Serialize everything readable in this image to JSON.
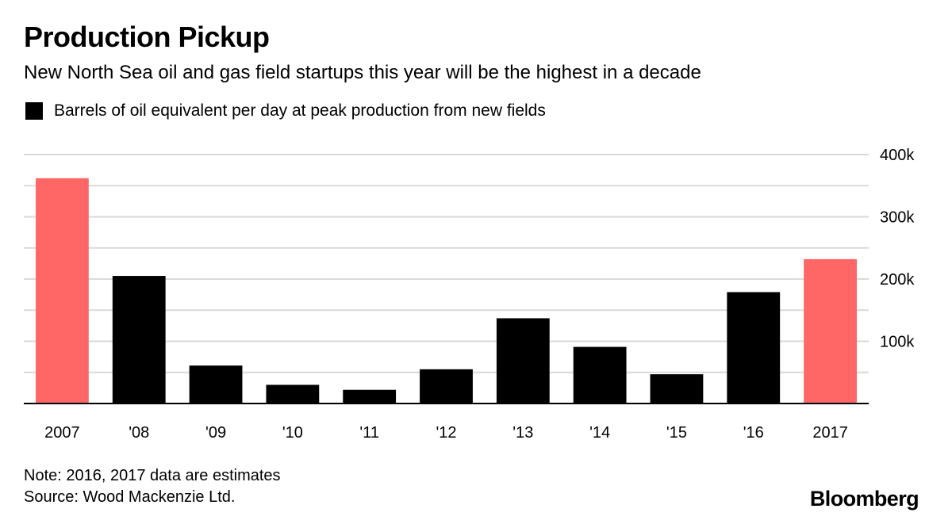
{
  "header": {
    "title": "Production Pickup",
    "subtitle": "New North Sea oil and gas field startups this year will be the highest in a decade"
  },
  "legend": {
    "label": "Barrels of oil equivalent per day at peak production from new fields",
    "color": "#000000"
  },
  "colors": {
    "estimate": "#ff6666",
    "actual": "#000000",
    "grid": "#d9d9d9",
    "axis": "#000000"
  },
  "chart_data": {
    "type": "bar",
    "categories": [
      "2007",
      "'08",
      "'09",
      "'10",
      "'11",
      "'12",
      "'13",
      "'14",
      "'15",
      "'16",
      "2017"
    ],
    "values": [
      362000,
      205000,
      61000,
      30000,
      22000,
      55000,
      137000,
      91000,
      47000,
      179000,
      232000
    ],
    "highlighted": [
      "2007",
      "2017"
    ],
    "ylim": [
      0,
      400000
    ],
    "yticks": [
      100000,
      200000,
      300000,
      400000
    ],
    "ytick_labels": [
      "100k",
      "200k",
      "300k",
      "400k"
    ],
    "grid_step": 50000,
    "grid": true,
    "y_axis_side": "right",
    "legend_position": "top-left"
  },
  "footer": {
    "note": "Note: 2016, 2017 data are estimates",
    "source": "Source: Wood Mackenzie Ltd.",
    "brand": "Bloomberg"
  }
}
